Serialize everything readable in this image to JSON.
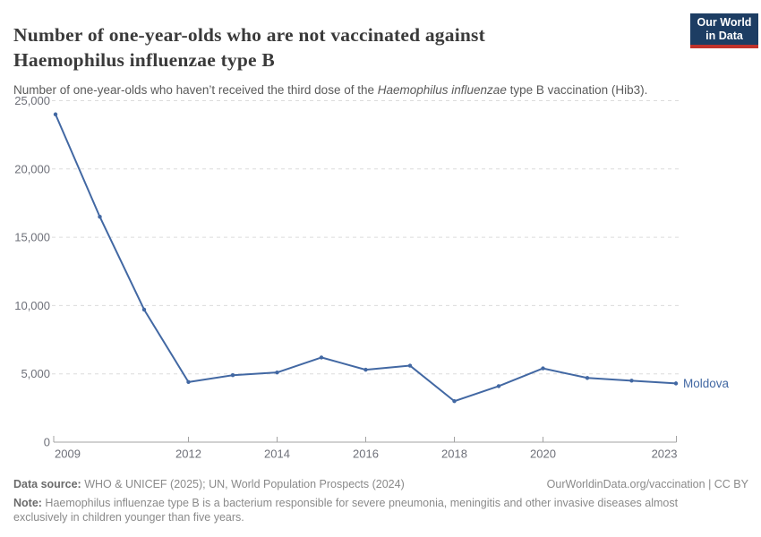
{
  "header": {
    "title": "Number of one-year-olds who are not vaccinated against Haemophilus influenzae type B",
    "subtitle_pre": "Number of one-year-olds who haven’t received the third dose of the ",
    "subtitle_italic": "Haemophilus influenzae",
    "subtitle_post": " type B vaccination (Hib3).",
    "logo": {
      "line1": "Our World",
      "line2": "in Data"
    }
  },
  "chart_data": {
    "type": "line",
    "x": [
      2009,
      2010,
      2011,
      2012,
      2013,
      2014,
      2015,
      2016,
      2017,
      2018,
      2019,
      2020,
      2021,
      2022,
      2023
    ],
    "series": [
      {
        "name": "Moldova",
        "values": [
          24000,
          16500,
          9700,
          4400,
          4900,
          5100,
          6200,
          5300,
          5600,
          3000,
          4100,
          5400,
          4700,
          4500,
          4300
        ]
      }
    ],
    "ylim": [
      0,
      25000
    ],
    "yticks": [
      0,
      5000,
      10000,
      15000,
      20000,
      25000
    ],
    "xticks": [
      2009,
      2012,
      2014,
      2016,
      2018,
      2020,
      2023
    ],
    "grid": "horizontal-dashed",
    "legend_position": "end-of-line"
  },
  "footer": {
    "datasource_label": "Data source:",
    "datasource_text": " WHO & UNICEF (2025); UN, World Population Prospects (2024)",
    "license_text": "OurWorldinData.org/vaccination | CC BY",
    "note_label": "Note:",
    "note_line1": " Haemophilus influenzae type B is a bacterium responsible for severe pneumonia, meningitis and other invasive diseases almost",
    "note_line2": "exclusively in children younger than five years."
  },
  "colors": {
    "line": "#4268a3",
    "logo_navy": "#1d3d63",
    "logo_red": "#c0322b",
    "title_text": "#3a3a3a",
    "subtitle_text": "#5a5a5a",
    "axis_text": "#6e7079",
    "grid_line": "#dcdcdc",
    "axis_line": "#a3a3a3",
    "footer_text": "#8a8a8a"
  }
}
